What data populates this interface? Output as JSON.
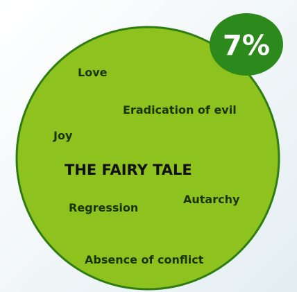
{
  "badge": "7%",
  "title": "THE FAIRY TALE",
  "words": [
    "Love",
    "Eradication of evil",
    "Joy",
    "Autarchy",
    "Regression",
    "Absence of conflict"
  ]
}
